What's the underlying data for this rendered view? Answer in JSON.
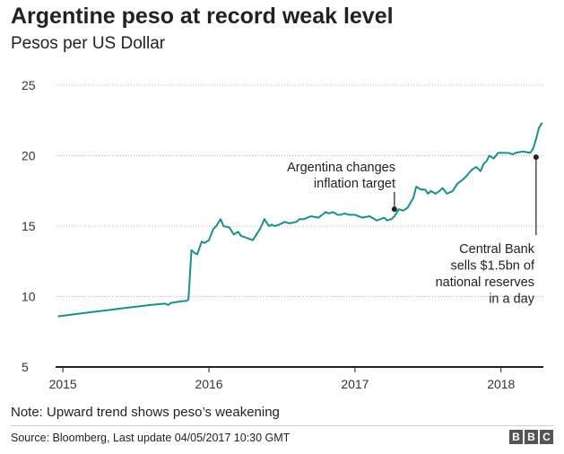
{
  "header": {
    "title": "Argentine peso at record weak level",
    "subtitle": "Pesos per US Dollar"
  },
  "footer": {
    "note": "Note: Upward trend shows peso’s weakening",
    "source": "Source: Bloomberg, Last update 04/05/2017 10:30 GMT",
    "logo_letters": [
      "B",
      "B",
      "C"
    ]
  },
  "chart_data": {
    "type": "line",
    "title": "Argentine peso at record weak level",
    "subtitle": "Pesos per US Dollar",
    "xlabel": "",
    "ylabel": "",
    "xlim": [
      2014.95,
      2018.29
    ],
    "ylim": [
      5,
      25
    ],
    "y_ticks": [
      5,
      10,
      15,
      20,
      25
    ],
    "x_ticks": [
      {
        "value": 2015,
        "label": "2015"
      },
      {
        "value": 2016,
        "label": "2016"
      },
      {
        "value": 2017,
        "label": "2017"
      },
      {
        "value": 2018,
        "label": "2018"
      }
    ],
    "grid": "horizontal dotted",
    "colors": {
      "line": "#1a8f8f",
      "grid": "#b8b8b8",
      "axis": "#222222",
      "annotation": "#222222"
    },
    "series": [
      {
        "name": "",
        "x": [
          2014.97,
          2015.2,
          2015.4,
          2015.6,
          2015.7,
          2015.72,
          2015.74,
          2015.8,
          2015.85,
          2015.86,
          2015.88,
          2015.9,
          2015.92,
          2015.95,
          2015.97,
          2016.0,
          2016.03,
          2016.05,
          2016.08,
          2016.1,
          2016.14,
          2016.17,
          2016.2,
          2016.22,
          2016.25,
          2016.3,
          2016.35,
          2016.38,
          2016.41,
          2016.43,
          2016.45,
          2016.48,
          2016.52,
          2016.55,
          2016.6,
          2016.62,
          2016.65,
          2016.7,
          2016.75,
          2016.8,
          2016.82,
          2016.85,
          2016.88,
          2016.9,
          2016.93,
          2016.96,
          2017.0,
          2017.05,
          2017.1,
          2017.15,
          2017.2,
          2017.22,
          2017.25,
          2017.27,
          2017.3,
          2017.33,
          2017.36,
          2017.4,
          2017.42,
          2017.45,
          2017.48,
          2017.5,
          2017.52,
          2017.55,
          2017.58,
          2017.6,
          2017.63,
          2017.67,
          2017.7,
          2017.75,
          2017.8,
          2017.83,
          2017.86,
          2017.88,
          2017.9,
          2017.92,
          2017.95,
          2017.98,
          2018.0,
          2018.03,
          2018.05,
          2018.08,
          2018.1,
          2018.15,
          2018.2,
          2018.22,
          2018.24,
          2018.26,
          2018.28
        ],
        "y": [
          8.6,
          8.9,
          9.15,
          9.4,
          9.5,
          9.4,
          9.55,
          9.65,
          9.7,
          9.8,
          13.3,
          13.1,
          13.0,
          13.9,
          13.8,
          14.0,
          14.8,
          15.0,
          15.5,
          15.0,
          14.9,
          14.4,
          14.6,
          14.3,
          14.2,
          14.0,
          14.8,
          15.5,
          15.0,
          15.1,
          15.0,
          15.1,
          15.3,
          15.2,
          15.3,
          15.5,
          15.5,
          15.7,
          15.6,
          16.0,
          15.9,
          16.0,
          15.8,
          15.8,
          15.9,
          15.8,
          15.8,
          15.6,
          15.7,
          15.4,
          15.6,
          15.4,
          15.5,
          15.7,
          16.2,
          16.1,
          16.3,
          17.0,
          17.8,
          17.6,
          17.6,
          17.3,
          17.5,
          17.3,
          17.5,
          17.7,
          17.3,
          17.5,
          18.0,
          18.4,
          19.0,
          19.2,
          18.9,
          19.4,
          19.6,
          20.0,
          19.8,
          20.2,
          20.2,
          20.2,
          20.2,
          20.1,
          20.2,
          20.3,
          20.2,
          20.5,
          21.2,
          22.0,
          22.3
        ]
      }
    ],
    "annotations": [
      {
        "lines": [
          "Argentina changes",
          "inflation target"
        ],
        "x": 2017.27,
        "y": 16.2
      },
      {
        "lines": [
          "Central Bank",
          "sells $1.5bn of",
          "national reserves",
          "in a day"
        ],
        "x": 2018.24,
        "y": 19.9
      }
    ]
  }
}
